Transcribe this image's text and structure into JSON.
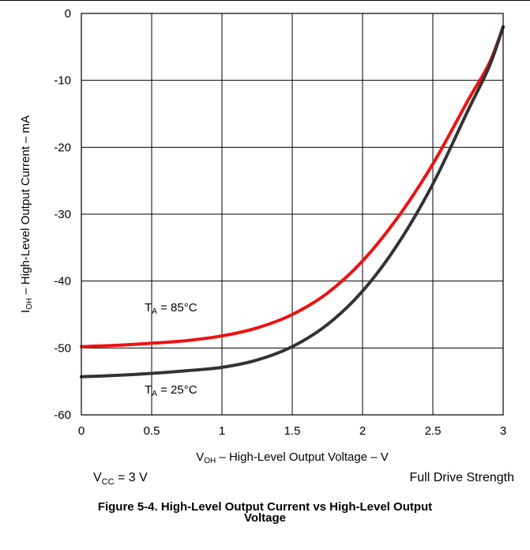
{
  "chart_data": {
    "type": "line",
    "xlabel": {
      "main": "V",
      "sub": "OH",
      "rest": " – High-Level Output Voltage – V"
    },
    "ylabel": {
      "main": "I",
      "sub": "OH",
      "rest": " – High-Level Output Current – mA"
    },
    "xlim": [
      0,
      3
    ],
    "ylim": [
      -60,
      0
    ],
    "xticks": [
      0,
      0.5,
      1,
      1.5,
      2,
      2.5,
      3
    ],
    "xtick_labels": [
      "0",
      "0.5",
      "1",
      "1.5",
      "2",
      "2.5",
      "3"
    ],
    "yticks": [
      0,
      -10,
      -20,
      -30,
      -40,
      -50,
      -60
    ],
    "ytick_labels": [
      "0",
      "-10",
      "-20",
      "-30",
      "-40",
      "-50",
      "-60"
    ],
    "grid": true,
    "series": [
      {
        "name": "T_A = 85°C",
        "color": "#ee1111",
        "x": [
          0,
          0.25,
          0.5,
          0.75,
          1.0,
          1.25,
          1.5,
          1.75,
          2.0,
          2.25,
          2.5,
          2.75,
          2.9,
          3.0
        ],
        "y": [
          -49.8,
          -49.6,
          -49.3,
          -48.9,
          -48.2,
          -47.0,
          -45.0,
          -41.8,
          -37.0,
          -30.5,
          -22.5,
          -13.0,
          -7.5,
          -2.0
        ]
      },
      {
        "name": "T_A = 25°C",
        "color": "#333333",
        "x": [
          0,
          0.25,
          0.5,
          0.75,
          1.0,
          1.25,
          1.5,
          1.75,
          2.0,
          2.25,
          2.5,
          2.75,
          2.9,
          3.0
        ],
        "y": [
          -54.3,
          -54.1,
          -53.8,
          -53.4,
          -52.9,
          -51.8,
          -49.8,
          -46.5,
          -41.5,
          -34.5,
          -25.5,
          -14.5,
          -8.0,
          -2.0
        ]
      }
    ],
    "annotations": [
      {
        "label_main": "T",
        "label_sub": "A",
        "label_rest": " = 85°C",
        "x": 0.45,
        "y": -44.5,
        "anchor": "start"
      },
      {
        "label_main": "T",
        "label_sub": "A",
        "label_rest": " = 25°C",
        "x": 0.45,
        "y": -56.8,
        "anchor": "start"
      }
    ]
  },
  "notes": {
    "vcc": {
      "main": "V",
      "sub": "CC",
      "rest": " = 3 V"
    },
    "drive": "Full Drive Strength"
  },
  "caption": {
    "line1": "Figure 5-4. High-Level Output Current vs High-Level Output",
    "line2": "Voltage"
  }
}
